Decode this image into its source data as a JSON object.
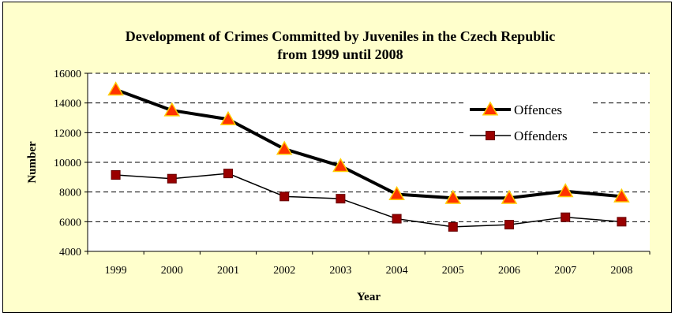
{
  "chart_data": {
    "type": "line",
    "title_lines": [
      "Development of Crimes Committed by Juveniles in the Czech Republic",
      "from 1999 until 2008"
    ],
    "xlabel": "Year",
    "ylabel": "Number",
    "categories": [
      "1999",
      "2000",
      "2001",
      "2002",
      "2003",
      "2004",
      "2005",
      "2006",
      "2007",
      "2008"
    ],
    "ylim": [
      4000,
      16000
    ],
    "yticks": [
      4000,
      6000,
      8000,
      10000,
      12000,
      14000,
      16000
    ],
    "ytick_labels": [
      "4000",
      "6000",
      "8000",
      "10000",
      "12000",
      "14000",
      "16000"
    ],
    "grid": "horizontal dashed",
    "legend_position": "top-right",
    "series": [
      {
        "name": "Offences",
        "values": [
          14900,
          13500,
          12900,
          10900,
          9750,
          7850,
          7600,
          7600,
          8050,
          7700
        ],
        "line_color": "#000000",
        "marker": "triangle",
        "marker_fill": "#ff3300",
        "marker_edge": "#ffcc00"
      },
      {
        "name": "Offenders",
        "values": [
          9150,
          8900,
          9250,
          7700,
          7550,
          6200,
          5650,
          5800,
          6300,
          6000
        ],
        "line_color": "#000000",
        "marker": "square",
        "marker_fill": "#990000",
        "marker_edge": "#660000"
      }
    ],
    "colors": {
      "chart_background": "#ffffcc",
      "plot_background": "#ffffff",
      "gridline": "#000000"
    }
  }
}
